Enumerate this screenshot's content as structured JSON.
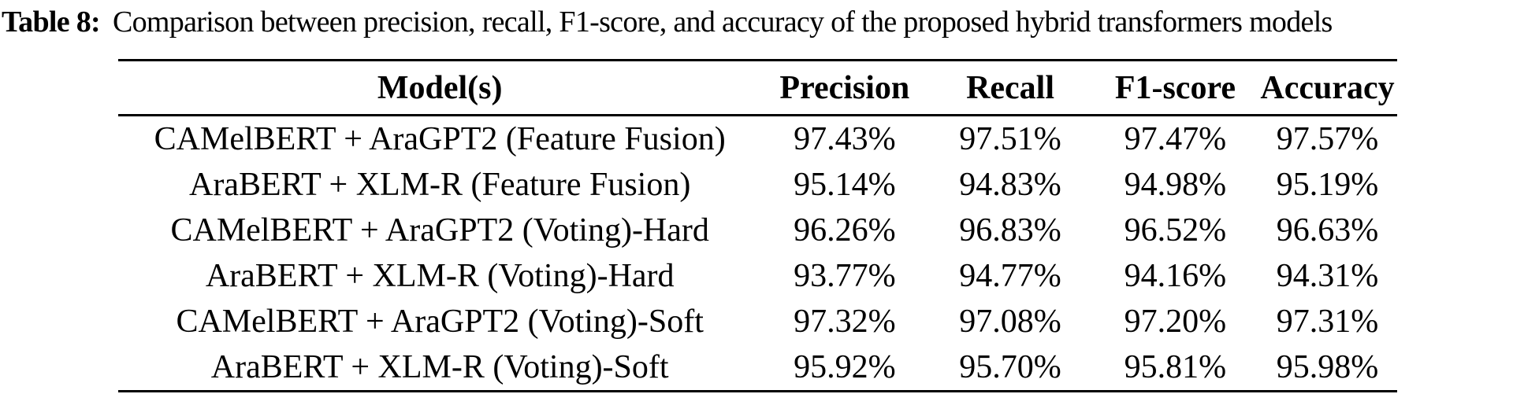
{
  "caption": {
    "label": "Table 8:",
    "text": "Comparison between precision, recall, F1-score, and accuracy of the proposed hybrid transformers models"
  },
  "table": {
    "columns": [
      "Model(s)",
      "Precision",
      "Recall",
      "F1-score",
      "Accuracy"
    ],
    "rows": [
      [
        "CAMelBERT + AraGPT2 (Feature Fusion)",
        "97.43%",
        "97.51%",
        "97.47%",
        "97.57%"
      ],
      [
        "AraBERT + XLM-R (Feature Fusion)",
        "95.14%",
        "94.83%",
        "94.98%",
        "95.19%"
      ],
      [
        "CAMelBERT + AraGPT2 (Voting)-Hard",
        "96.26%",
        "96.83%",
        "96.52%",
        "96.63%"
      ],
      [
        "AraBERT + XLM-R (Voting)-Hard",
        "93.77%",
        "94.77%",
        "94.16%",
        "94.31%"
      ],
      [
        "CAMelBERT + AraGPT2 (Voting)-Soft",
        "97.32%",
        "97.08%",
        "97.20%",
        "97.31%"
      ],
      [
        "AraBERT + XLM-R (Voting)-Soft",
        "95.92%",
        "95.70%",
        "95.81%",
        "95.98%"
      ]
    ],
    "text_color": "#000000",
    "background_color": "#ffffff",
    "rule_color": "#000000"
  }
}
